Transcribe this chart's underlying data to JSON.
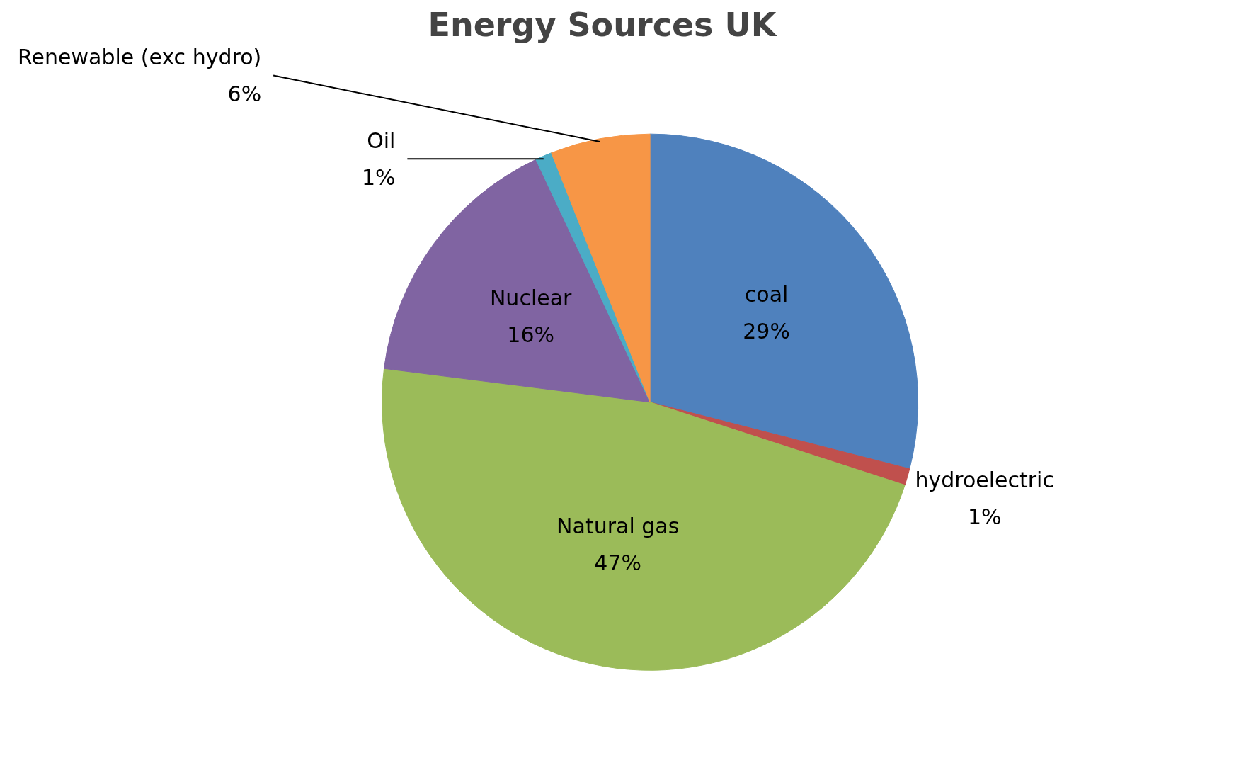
{
  "chart_data": {
    "type": "pie",
    "title": "Energy Sources UK",
    "categories": [
      "coal",
      "hydroelectric",
      "Natural gas",
      "Nuclear",
      "Oil",
      "Renewable (exc hydro)"
    ],
    "values": [
      29,
      1,
      47,
      16,
      1,
      6
    ],
    "value_labels": [
      "29%",
      "1%",
      "47%",
      "16%",
      "1%",
      "6%"
    ],
    "colors": [
      "#4f81bd",
      "#c0504d",
      "#9bbb59",
      "#8064a2",
      "#4bacc6",
      "#f79646"
    ],
    "legend": false
  }
}
